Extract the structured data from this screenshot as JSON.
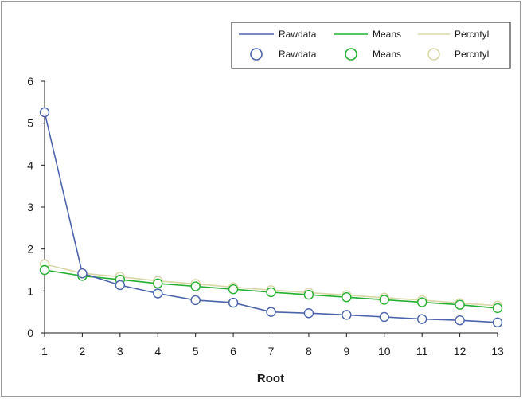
{
  "chart_data": {
    "type": "line",
    "xlabel": "Root",
    "ylabel": "",
    "x": [
      1,
      2,
      3,
      4,
      5,
      6,
      7,
      8,
      9,
      10,
      11,
      12,
      13
    ],
    "xlim": [
      1,
      13
    ],
    "ylim": [
      0,
      6
    ],
    "x_ticks": [
      "1",
      "2",
      "3",
      "4",
      "5",
      "6",
      "7",
      "8",
      "9",
      "10",
      "11",
      "12",
      "13"
    ],
    "y_ticks": [
      "0",
      "1",
      "2",
      "3",
      "4",
      "5",
      "6"
    ],
    "grid": false,
    "legend_placement": "top-right",
    "series": [
      {
        "name": "Rawdata",
        "color": "#4a63ad",
        "values": [
          5.26,
          1.42,
          1.14,
          0.94,
          0.78,
          0.72,
          0.5,
          0.47,
          0.43,
          0.38,
          0.33,
          0.3,
          0.25
        ]
      },
      {
        "name": "Means",
        "color": "#22b02e",
        "values": [
          1.5,
          1.36,
          1.27,
          1.18,
          1.11,
          1.04,
          0.97,
          0.91,
          0.85,
          0.79,
          0.73,
          0.67,
          0.59
        ]
      },
      {
        "name": "Percntyl",
        "color": "#d9d7a8",
        "values": [
          1.64,
          1.42,
          1.34,
          1.24,
          1.17,
          1.09,
          1.02,
          0.96,
          0.9,
          0.84,
          0.78,
          0.71,
          0.65
        ]
      }
    ]
  }
}
